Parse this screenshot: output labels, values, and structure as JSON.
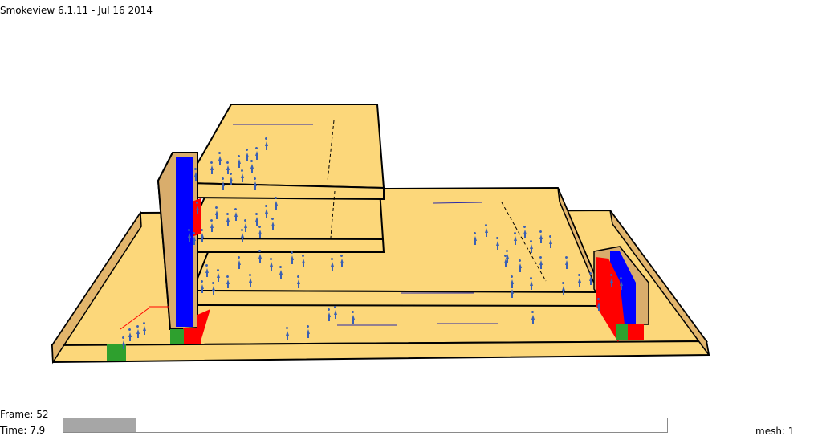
{
  "window": {
    "title": "Smokeview 6.1.11 - Jul 16 2014"
  },
  "status": {
    "frame": "Frame: 52",
    "time": "Time: 7.9",
    "mesh": "mesh: 1"
  },
  "timebar": {
    "progress": 0.12
  },
  "colors": {
    "floor": "#fcd77a",
    "wall": "#d9ad6c",
    "outline": "#000000",
    "stair_blue": "#0000ff",
    "stair_red": "#ff0000",
    "exit_green": "#2ea02e",
    "agent": "#3a5fb3",
    "timebar_fill": "#a6a6a6"
  },
  "icons": {
    "agent": "agent-figure-icon"
  }
}
